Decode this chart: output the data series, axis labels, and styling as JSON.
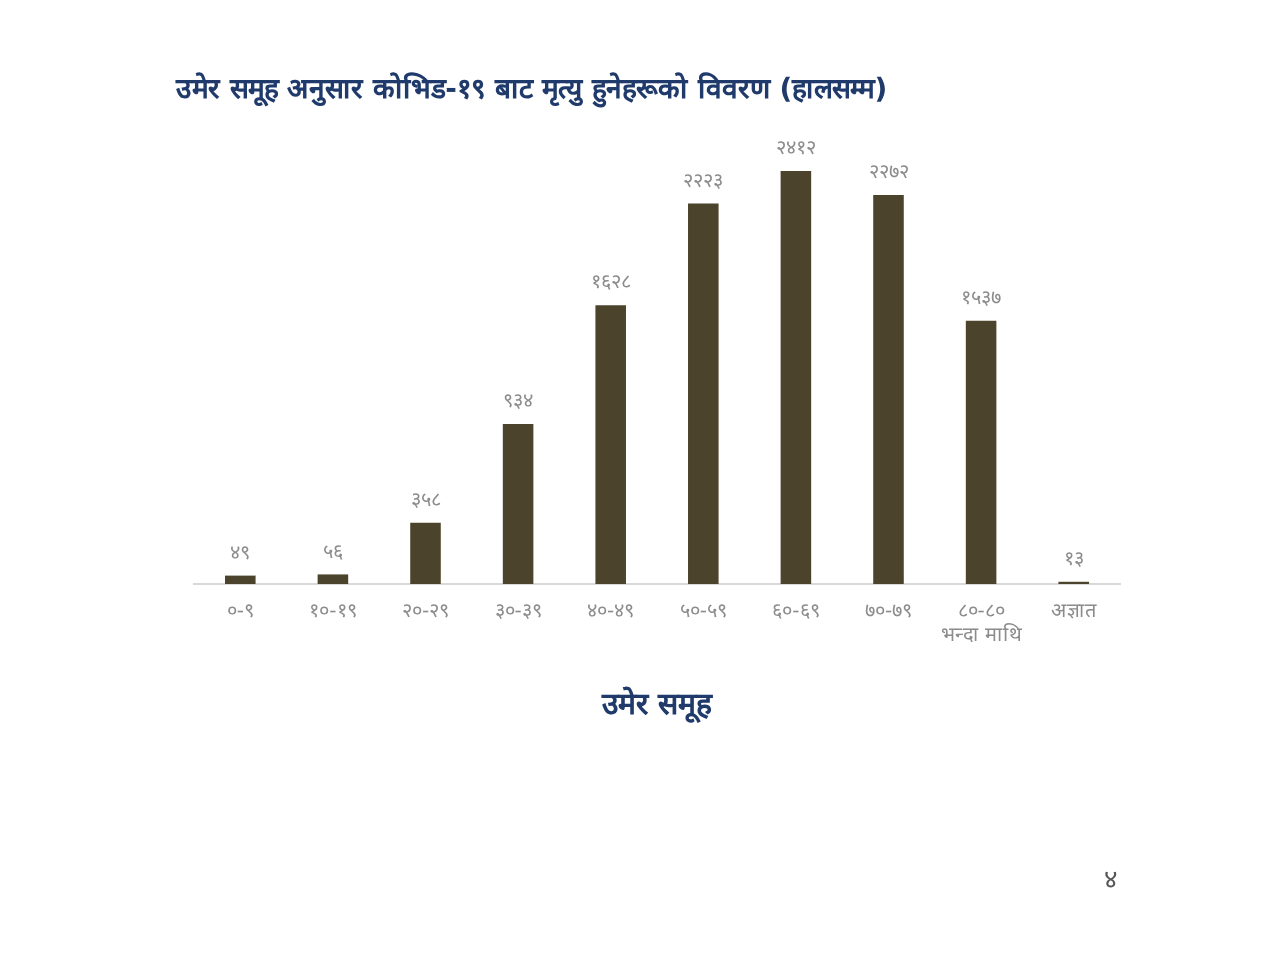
{
  "chart_data": {
    "type": "bar",
    "title": "उमेर समूह अनुसार कोभिड-१९ बाट मृत्यु हुनेहरूको विवरण (हालसम्म)",
    "xlabel": "उमेर समूह",
    "categories": [
      "०-९",
      "१०-१९",
      "२०-२९",
      "३०-३९",
      "४०-४९",
      "५०-५९",
      "६०-६९",
      "७०-७९",
      "८०-८०\nभन्दा माथि",
      "अज्ञात"
    ],
    "values": [
      49,
      56,
      358,
      934,
      1628,
      2223,
      2412,
      2272,
      1537,
      13
    ],
    "value_labels": [
      "४९",
      "५६",
      "३५८",
      "९३४",
      "१६२८",
      "२२२३",
      "२४१२",
      "२२७२",
      "१५३७",
      "१३"
    ],
    "color": "#4b432b",
    "annotations": [
      "४"
    ]
  }
}
